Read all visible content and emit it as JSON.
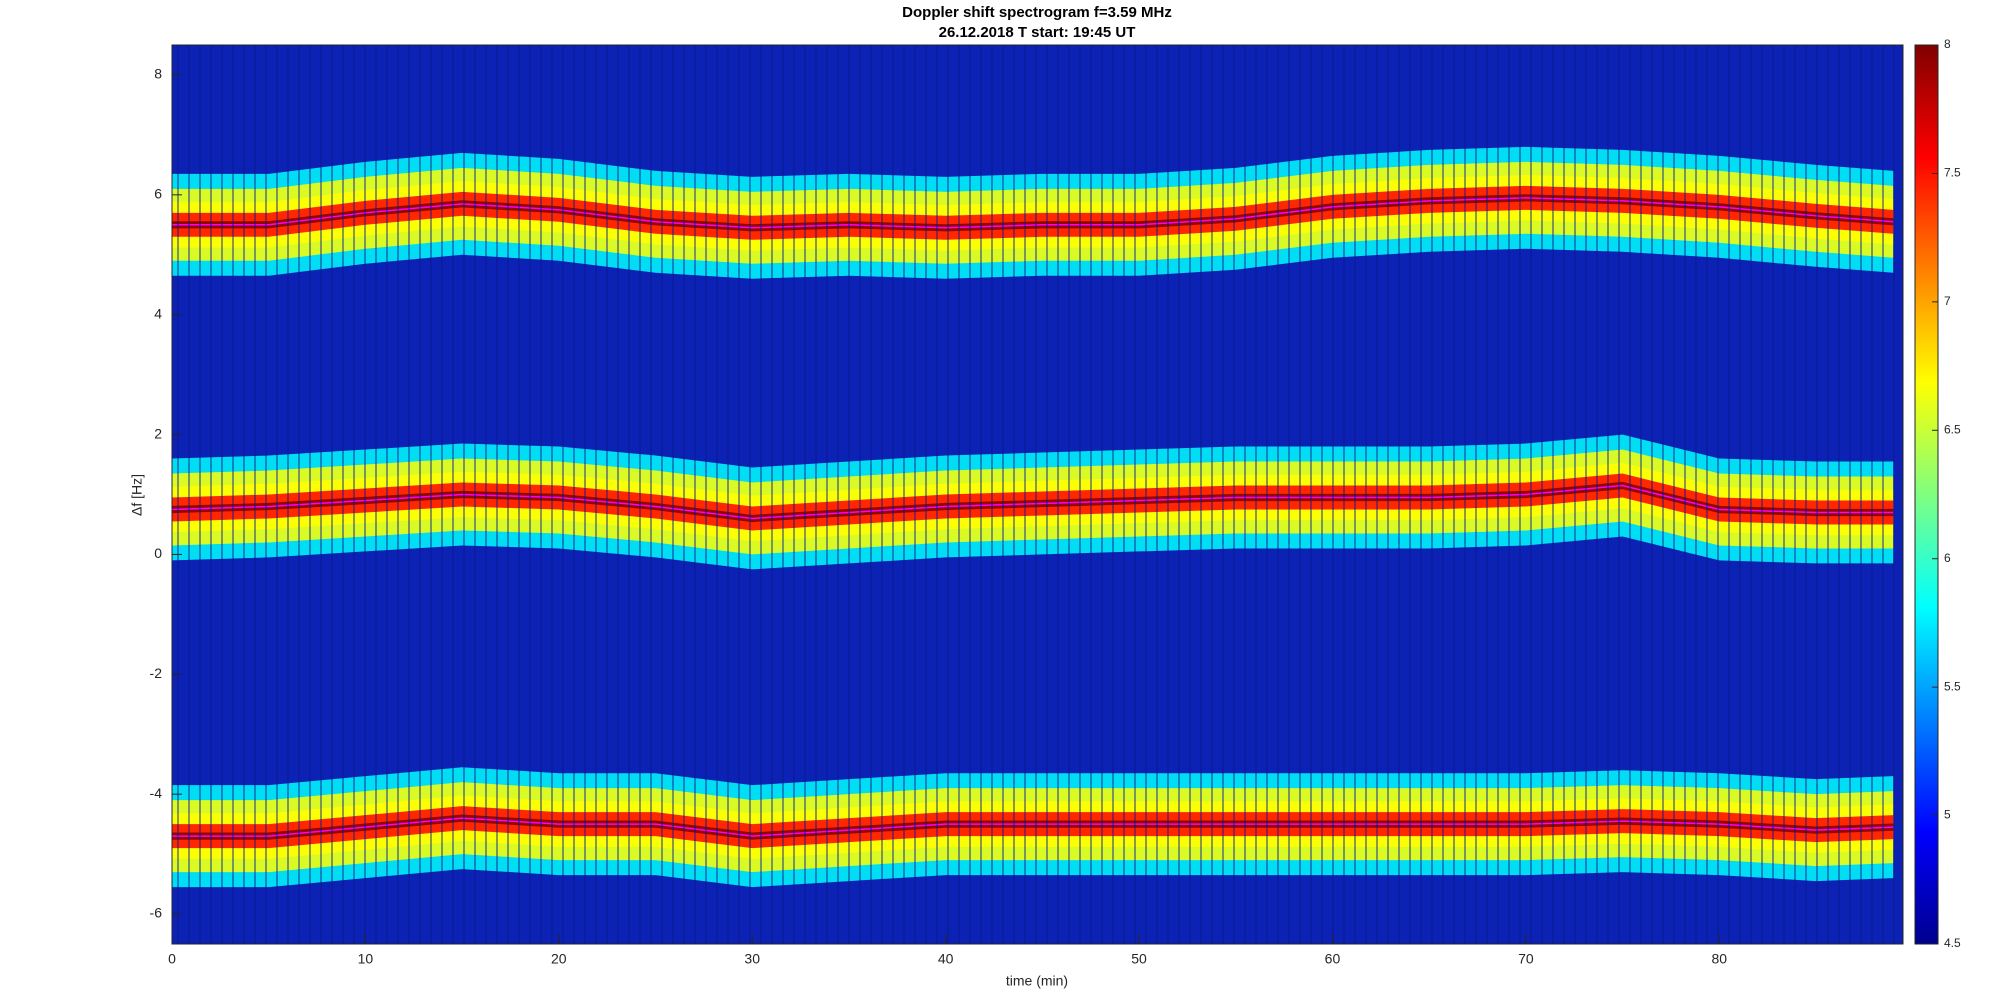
{
  "chart_data": {
    "type": "spectrogram",
    "title": "Doppler shift spectrogram f=3.59 MHz",
    "subtitle": "26.12.2018   T start: 19:45 UT",
    "x_label": "time (min)",
    "y_label": "Δf [Hz]",
    "xlim": [
      0,
      89.5
    ],
    "ylim": [
      -6.5,
      8.5
    ],
    "xticks": [
      0,
      10,
      20,
      30,
      40,
      50,
      60,
      70,
      80
    ],
    "yticks": [
      -6,
      -4,
      -2,
      0,
      2,
      4,
      6,
      8
    ],
    "colormap": "jet",
    "clim": [
      4.5,
      8
    ],
    "cticks": [
      4.5,
      5,
      5.5,
      6,
      6.5,
      7,
      7.5,
      8
    ],
    "x": [
      0,
      5,
      10,
      15,
      20,
      25,
      30,
      35,
      40,
      45,
      50,
      55,
      60,
      65,
      70,
      75,
      80,
      85,
      89
    ],
    "series": [
      {
        "color": "#ff00ff",
        "values": [
          5.5,
          5.5,
          5.7,
          5.85,
          5.75,
          5.55,
          5.45,
          5.5,
          5.45,
          5.5,
          5.5,
          5.6,
          5.8,
          5.9,
          5.95,
          5.9,
          5.8,
          5.65,
          5.55
        ]
      },
      {
        "color": "#ff00ff",
        "values": [
          0.75,
          0.8,
          0.9,
          1.0,
          0.95,
          0.8,
          0.6,
          0.7,
          0.8,
          0.85,
          0.9,
          0.95,
          0.95,
          0.95,
          1.0,
          1.15,
          0.75,
          0.7,
          0.7
        ]
      },
      {
        "color": "#ff00ff",
        "values": [
          -4.7,
          -4.7,
          -4.55,
          -4.4,
          -4.5,
          -4.5,
          -4.7,
          -4.6,
          -4.5,
          -4.5,
          -4.5,
          -4.5,
          -4.5,
          -4.5,
          -4.5,
          -4.45,
          -4.5,
          -4.6,
          -4.55
        ]
      }
    ]
  }
}
